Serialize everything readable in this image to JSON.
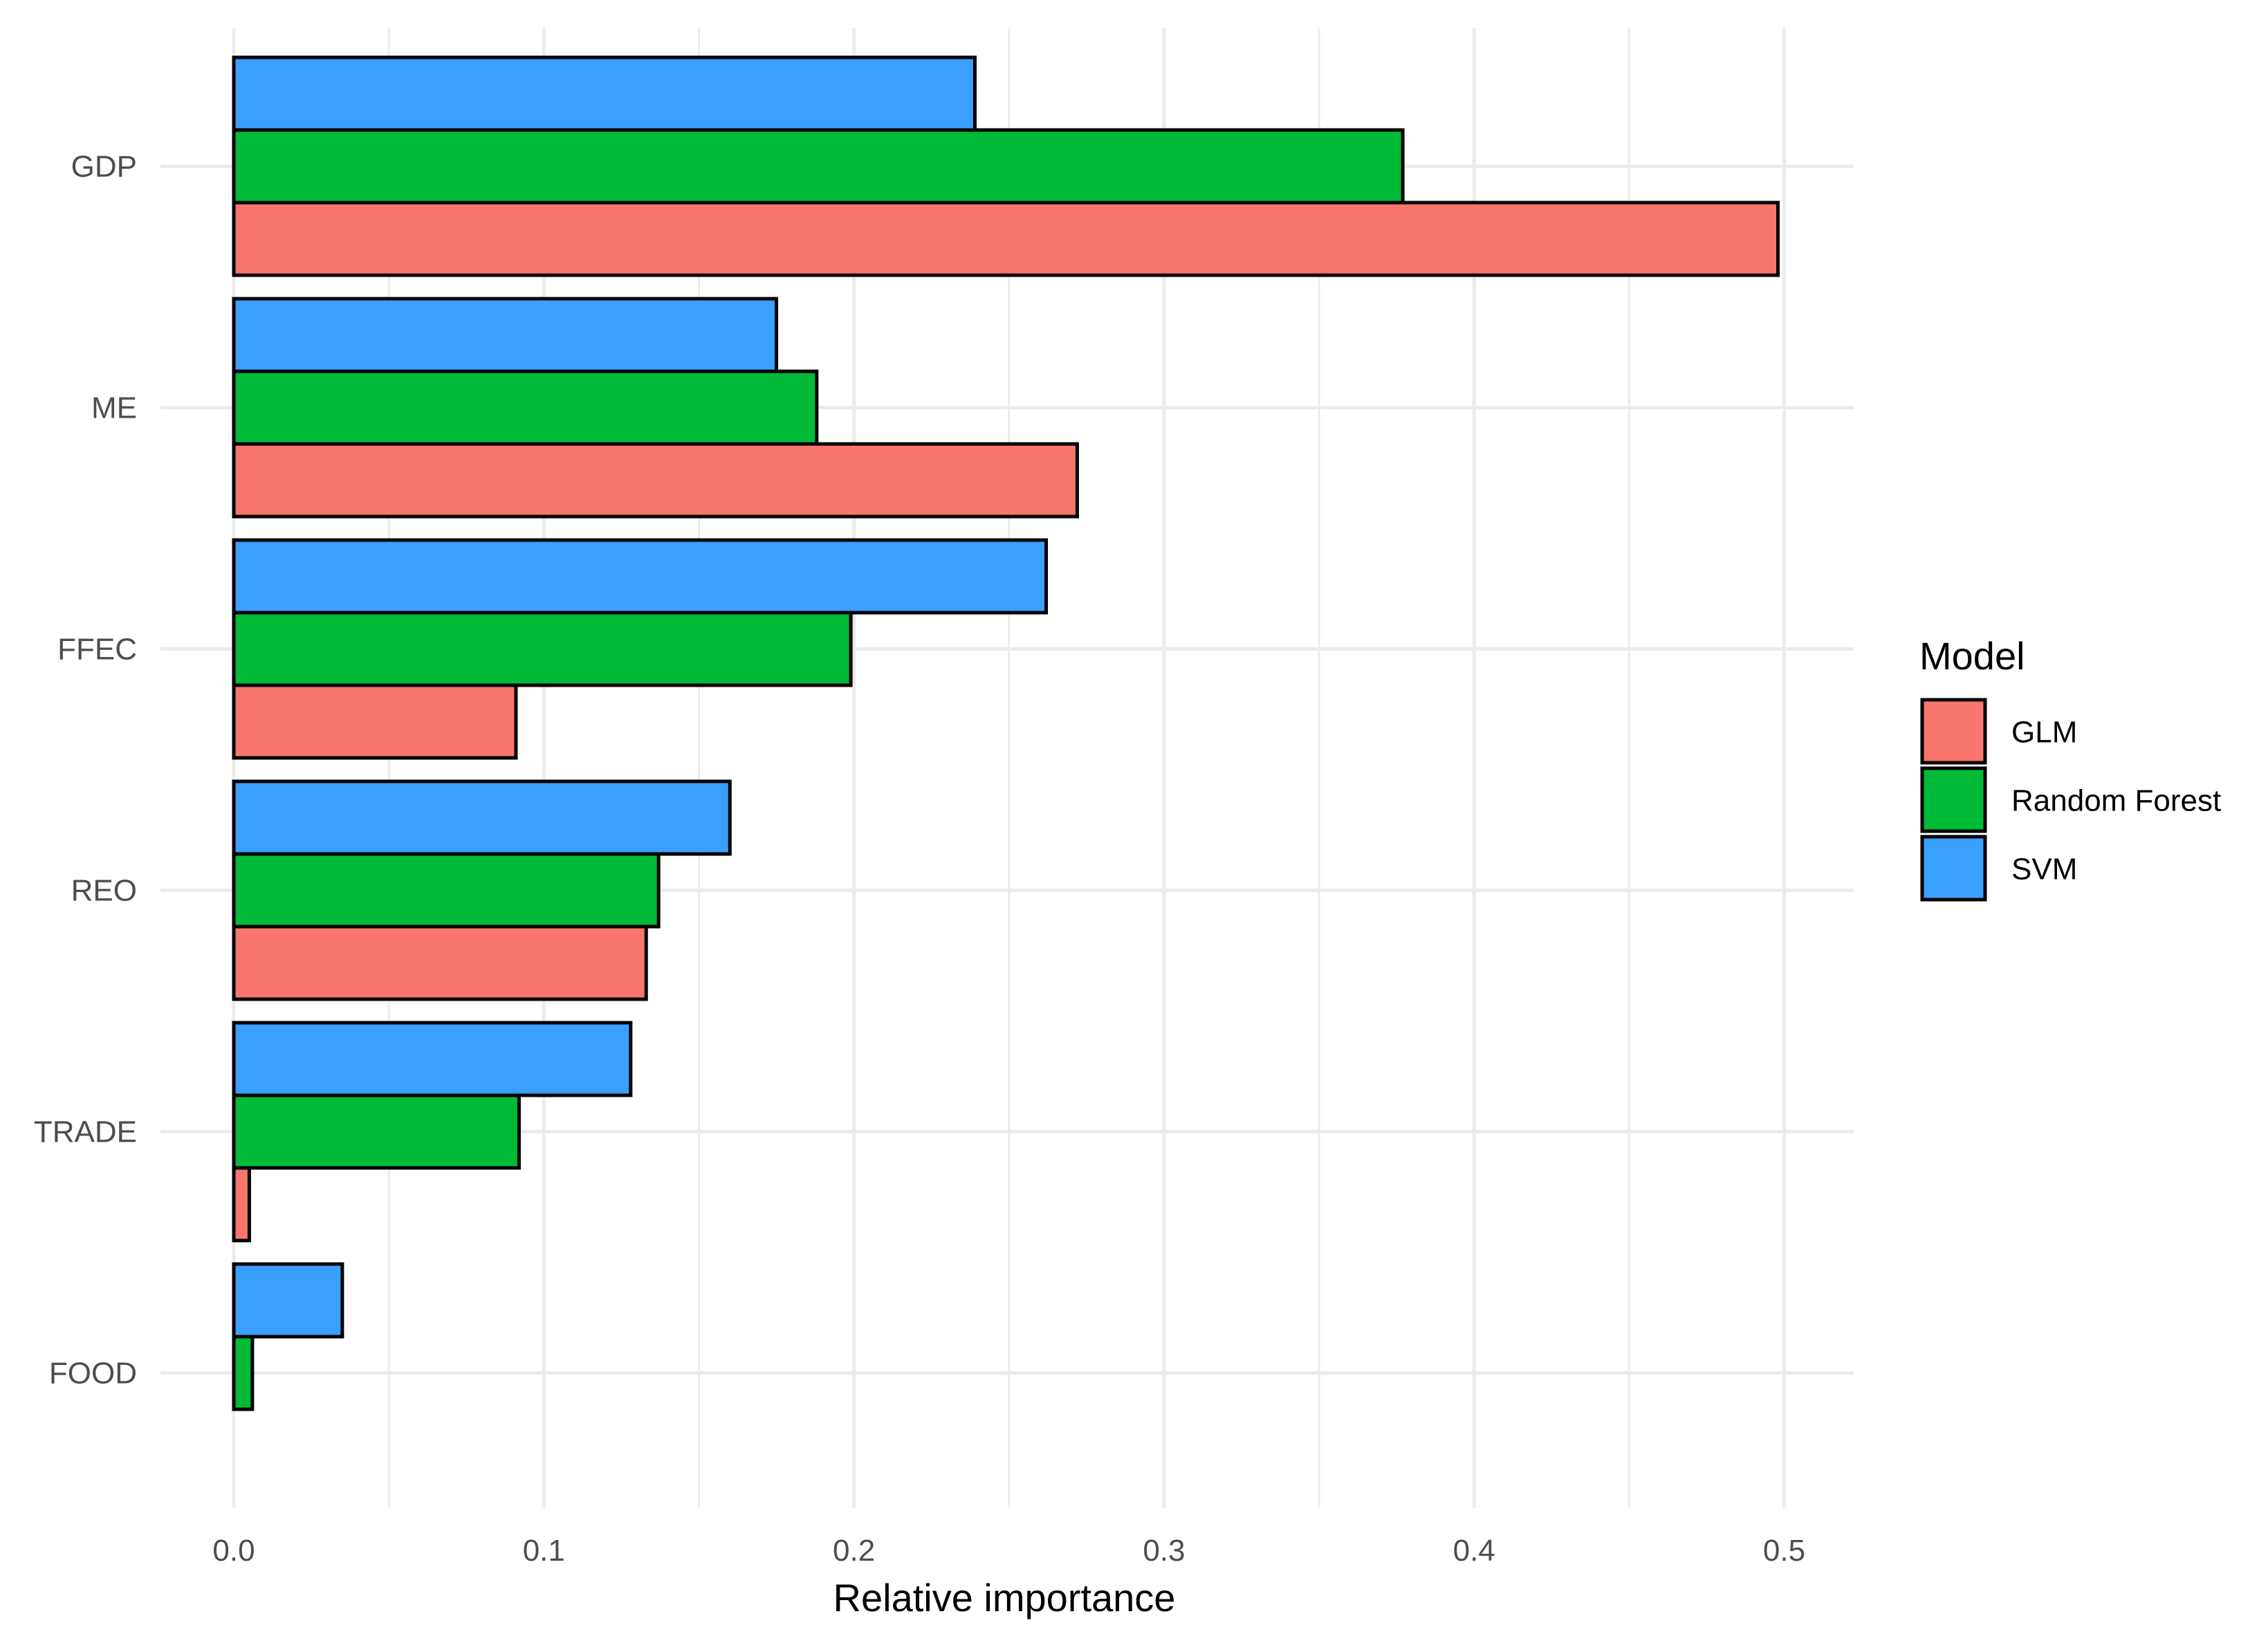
{
  "chart_data": {
    "type": "bar",
    "orientation": "horizontal",
    "title": "",
    "xlabel": "Relative importance",
    "ylabel": "",
    "xlim": [
      0,
      0.5
    ],
    "x_ticks": [
      0.0,
      0.1,
      0.2,
      0.3,
      0.4,
      0.5
    ],
    "x_tick_labels": [
      "0.0",
      "0.1",
      "0.2",
      "0.3",
      "0.4",
      "0.5"
    ],
    "grid": true,
    "categories": [
      "GDP",
      "ME",
      "FFEC",
      "REO",
      "TRADE",
      "FOOD"
    ],
    "series": [
      {
        "name": "GLM",
        "color": "#F8766D",
        "values": [
          0.498,
          0.272,
          0.091,
          0.133,
          0.005,
          0.0
        ]
      },
      {
        "name": "Random Forest",
        "color": "#00BA38",
        "values": [
          0.377,
          0.188,
          0.199,
          0.137,
          0.092,
          0.006
        ]
      },
      {
        "name": "SVM",
        "color": "#3A9FFF",
        "values": [
          0.239,
          0.175,
          0.262,
          0.16,
          0.128,
          0.035
        ]
      }
    ],
    "legend": {
      "title": "Model",
      "position": "right",
      "entries": [
        "GLM",
        "Random Forest",
        "SVM"
      ]
    }
  }
}
